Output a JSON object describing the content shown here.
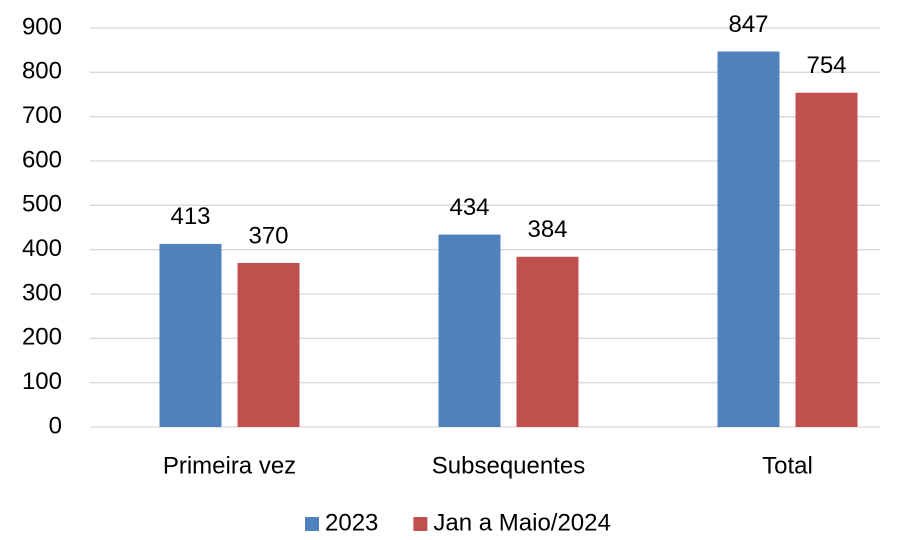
{
  "chart_data": {
    "type": "bar",
    "categories": [
      "Primeira vez",
      "Subsequentes",
      "Total"
    ],
    "series": [
      {
        "name": "2023",
        "color": "#4f81bd",
        "values": [
          413,
          434,
          847
        ]
      },
      {
        "name": "Jan a Maio/2024",
        "color": "#c0504d",
        "values": [
          370,
          384,
          754
        ]
      }
    ],
    "ylim": [
      0,
      900
    ],
    "yticks": [
      0,
      100,
      200,
      300,
      400,
      500,
      600,
      700,
      800,
      900
    ],
    "grid": true,
    "legend": "bottom"
  }
}
